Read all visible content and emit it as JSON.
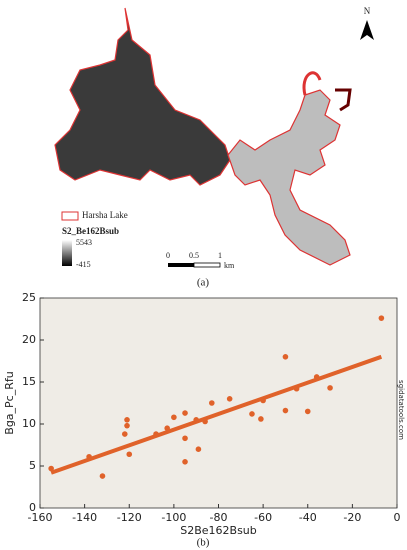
{
  "map": {
    "north": "N",
    "legend_label": "Harsha Lake",
    "layer_name": "S2_Be162Bsub",
    "legend_max": "5543",
    "legend_min": "-415",
    "scale_ticks": [
      "0",
      "0.5",
      "1"
    ],
    "scale_unit": "km"
  },
  "panel_labels": [
    "(a)",
    "(b)"
  ],
  "chart_data": {
    "type": "scatter",
    "x_label": "S2Be162Bsub",
    "y_label": "Bga_Pc_Rfu",
    "watermark": "sgidatatools.com",
    "color": "#e0622a",
    "background": "#efece6",
    "grid": false,
    "x": [
      -155,
      -138,
      -132,
      -121,
      -121,
      -122,
      -120,
      -108,
      -103,
      -100,
      -95,
      -95,
      -95,
      -90,
      -89,
      -86,
      -83,
      -75,
      -65,
      -61,
      -60,
      -50,
      -50,
      -45,
      -40,
      -36,
      -30,
      -7
    ],
    "values": [
      4.7,
      6.1,
      3.8,
      10.5,
      9.8,
      8.8,
      6.4,
      8.8,
      9.5,
      10.8,
      11.3,
      8.3,
      5.5,
      10.5,
      7.0,
      10.3,
      12.5,
      13.0,
      11.2,
      10.6,
      12.8,
      18.0,
      11.6,
      14.2,
      11.5,
      15.6,
      14.3,
      22.6
    ],
    "trendline": {
      "x": [
        -155,
        -7
      ],
      "values": [
        4.2,
        18.0
      ]
    },
    "xlim": [
      -160,
      0
    ],
    "xticks": [
      -160,
      -140,
      -120,
      -100,
      -80,
      -60,
      -40,
      -20,
      0
    ],
    "ylim": [
      0,
      25
    ],
    "yticks": [
      0,
      5,
      10,
      15,
      20,
      25
    ]
  }
}
